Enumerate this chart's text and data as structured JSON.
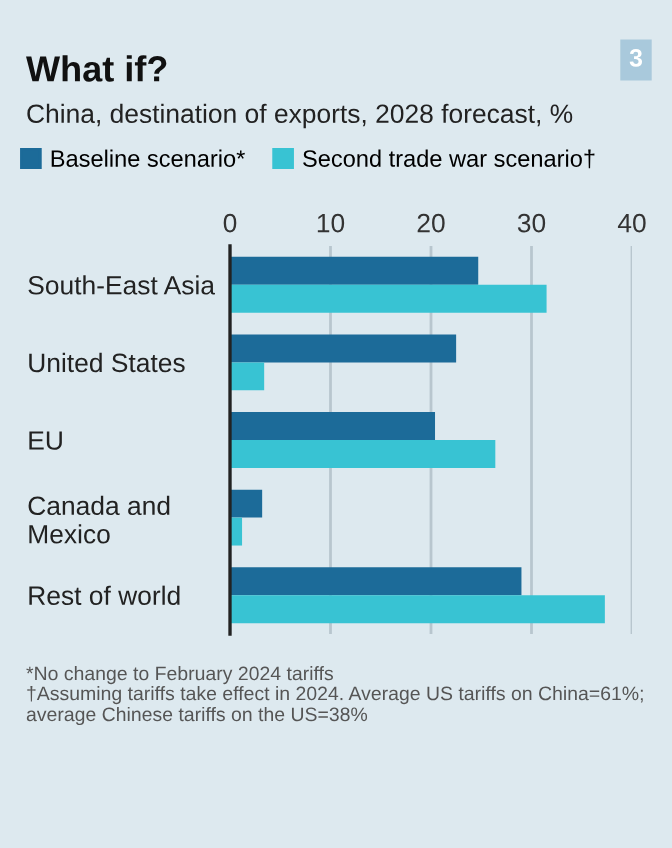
{
  "chart_data": {
    "type": "bar",
    "orientation": "horizontal",
    "title": "What if?",
    "subtitle": "China, destination of exports, 2028 forecast, %",
    "categories": [
      "South-East Asia",
      "United States",
      "EU",
      "Canada and\nMexico",
      "Rest of world"
    ],
    "series": [
      {
        "name": "Baseline scenario*",
        "color": "#1c6b99",
        "values": [
          24.7,
          22.5,
          20.4,
          3.2,
          29.0
        ]
      },
      {
        "name": "Second trade war scenario†",
        "color": "#38c3d3",
        "values": [
          31.5,
          3.4,
          26.4,
          1.2,
          37.3
        ]
      }
    ],
    "xlim": [
      0,
      40
    ],
    "xticks": [
      0,
      10,
      20,
      30,
      40
    ],
    "grid": "x",
    "legend": "top left",
    "annotations": [
      "3",
      "*No change to February 2024 tariffs",
      "†Assuming tariffs take effect in 2024. Average US tariffs on China=61%; average Chinese tariffs on the US=38%"
    ]
  }
}
